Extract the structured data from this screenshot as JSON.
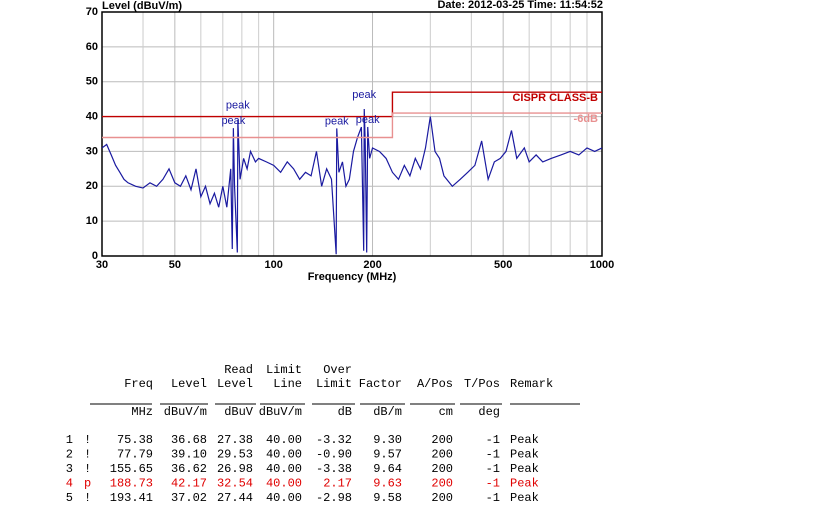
{
  "chart_data": {
    "type": "line",
    "title": "Level (dBuV/m)",
    "header": "Date: 2012-03-25  Time: 11:54:52",
    "xlabel": "Frequency (MHz)",
    "xscale": "log",
    "xlim": [
      30,
      1000
    ],
    "ylim": [
      0,
      70
    ],
    "xticks": [
      30,
      50,
      100,
      200,
      500,
      1000
    ],
    "xminor": [
      40,
      60,
      70,
      80,
      90,
      300,
      400,
      600,
      700,
      800,
      900
    ],
    "yticks": [
      0,
      10,
      20,
      30,
      40,
      50,
      60,
      70
    ],
    "grid": true,
    "series": [
      {
        "name": "Level",
        "color": "#1a1aa0",
        "x": [
          30,
          31,
          32,
          33,
          34,
          35,
          36,
          38,
          40,
          42,
          44,
          46,
          48,
          50,
          52,
          54,
          56,
          58,
          60,
          62,
          64,
          66,
          68,
          70,
          72,
          74,
          74.8,
          75.38,
          76,
          77.5,
          77.79,
          79,
          81,
          83,
          85,
          88,
          90,
          95,
          100,
          105,
          110,
          115,
          120,
          125,
          130,
          135,
          140,
          145,
          150,
          155,
          155.65,
          158,
          162,
          166,
          170,
          175,
          180,
          185,
          188,
          188.73,
          190,
          192,
          193.41,
          196,
          200,
          210,
          220,
          230,
          240,
          250,
          260,
          270,
          280,
          290,
          300,
          310,
          320,
          330,
          350,
          370,
          390,
          410,
          430,
          450,
          470,
          490,
          510,
          530,
          550,
          580,
          600,
          630,
          660,
          700,
          750,
          800,
          850,
          900,
          950,
          1000
        ],
        "values": [
          31,
          32,
          29,
          26,
          24,
          22,
          21,
          20,
          19.5,
          21,
          20,
          22,
          25,
          21,
          20,
          23,
          19,
          25,
          17,
          20,
          15,
          18,
          14,
          20,
          14,
          25,
          2,
          36.68,
          20,
          1,
          39.1,
          22,
          28,
          25,
          30,
          27,
          28,
          27,
          26,
          24,
          27,
          25,
          22,
          24,
          23,
          30,
          20,
          25,
          22,
          0.5,
          36.62,
          24,
          27,
          20,
          22,
          30,
          34,
          37,
          1.5,
          42.17,
          33,
          1,
          37.02,
          28,
          31,
          30,
          28,
          24,
          22,
          26,
          23,
          28,
          25,
          31,
          40,
          30,
          28,
          23,
          20,
          22,
          24,
          26,
          33,
          22,
          27,
          28,
          30,
          36,
          28,
          31,
          27,
          29,
          27,
          28,
          29,
          30,
          29,
          31,
          30,
          31
        ]
      },
      {
        "name": "CISPR CLASS-B",
        "color": "#c00000",
        "x": [
          30,
          230,
          230,
          1000
        ],
        "values": [
          40,
          40,
          47,
          47
        ]
      },
      {
        "name": "-6dB",
        "color": "#e89090",
        "x": [
          30,
          230,
          230,
          1000
        ],
        "values": [
          34,
          34,
          41,
          41
        ]
      }
    ],
    "peaks": [
      {
        "label": "peak",
        "x": 75.38,
        "y": 36.68
      },
      {
        "label": "peak",
        "x": 77.79,
        "y": 39.1
      },
      {
        "label": "peak",
        "x": 155.65,
        "y": 36.62
      },
      {
        "label": "peak",
        "x": 188.73,
        "y": 42.17
      },
      {
        "label": "peak",
        "x": 193.41,
        "y": 37.02
      }
    ]
  },
  "table": {
    "columns": [
      {
        "head": [
          "Freq"
        ],
        "unit": "MHz"
      },
      {
        "head": [
          "Level"
        ],
        "unit": "dBuV/m"
      },
      {
        "head": [
          "Read",
          "Level"
        ],
        "unit": "dBuV"
      },
      {
        "head": [
          "Limit",
          "Line"
        ],
        "unit": "dBuV/m"
      },
      {
        "head": [
          "Over",
          "Limit"
        ],
        "unit": "dB"
      },
      {
        "head": [
          "Factor"
        ],
        "unit": "dB/m"
      },
      {
        "head": [
          "A/Pos"
        ],
        "unit": "cm"
      },
      {
        "head": [
          "T/Pos"
        ],
        "unit": "deg"
      },
      {
        "head": [
          "Remark"
        ]
      }
    ],
    "highlight_row": 3,
    "highlight_color": "#e00000",
    "rows": [
      [
        "1",
        "!",
        "75.38",
        "36.68",
        "27.38",
        "40.00",
        "-3.32",
        "9.30",
        "200",
        "-1",
        "Peak"
      ],
      [
        "2",
        "!",
        "77.79",
        "39.10",
        "29.53",
        "40.00",
        "-0.90",
        "9.57",
        "200",
        "-1",
        "Peak"
      ],
      [
        "3",
        "!",
        "155.65",
        "36.62",
        "26.98",
        "40.00",
        "-3.38",
        "9.64",
        "200",
        "-1",
        "Peak"
      ],
      [
        "4",
        "p",
        "188.73",
        "42.17",
        "32.54",
        "40.00",
        "2.17",
        "9.63",
        "200",
        "-1",
        "Peak"
      ],
      [
        "5",
        "!",
        "193.41",
        "37.02",
        "27.44",
        "40.00",
        "-2.98",
        "9.58",
        "200",
        "-1",
        "Peak"
      ]
    ]
  }
}
